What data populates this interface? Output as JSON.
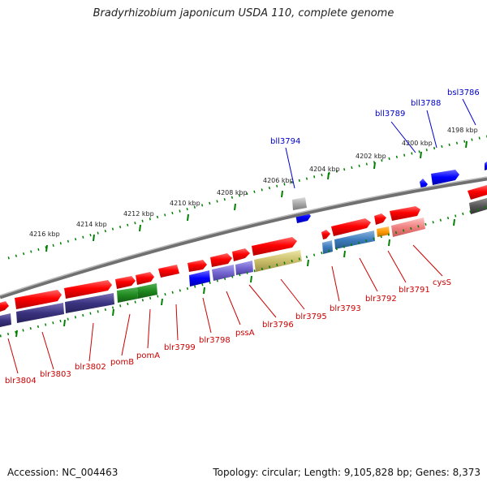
{
  "title": "Bradyrhizobium japonicum USDA 110, complete genome",
  "footer": {
    "accession": "Accession: NC_004463",
    "stats": "Topology: circular; Length: 9,105,828 bp; Genes: 8,373"
  },
  "outer_scale": {
    "label_color": "#222222",
    "ticks": [
      "4198 kbp",
      "4200 kbp",
      "4202 kbp",
      "4204 kbp",
      "4206 kbp",
      "4208 kbp",
      "4210 kbp",
      "4212 kbp",
      "4214 kbp",
      "4216 kbp"
    ]
  },
  "top_labels": [
    "bsl3786",
    "bll3788",
    "bll3789",
    "bll3794"
  ],
  "bottom_labels": [
    "cysS",
    "blr3791",
    "blr3792",
    "blr3793",
    "blr3795",
    "blr3796",
    "pssA",
    "blr3798",
    "blr3799",
    "pomA",
    "pomB",
    "blr3802",
    "blr3803",
    "blr3804"
  ],
  "colors": {
    "forward_label": "#cc0000",
    "reverse_label": "#0000cc",
    "backbone": "#888888",
    "scale_ticks": "#006600"
  }
}
